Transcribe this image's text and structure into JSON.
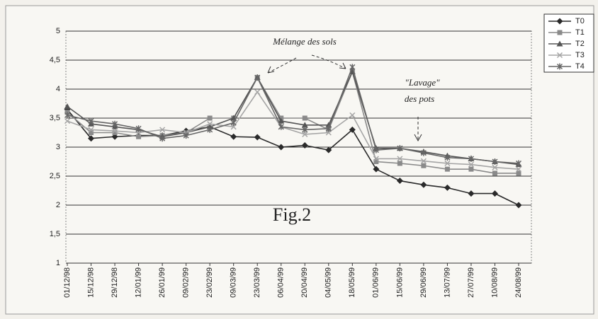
{
  "chart_data": {
    "type": "line",
    "categories": [
      "01/12/98",
      "15/12/98",
      "29/12/98",
      "12/01/99",
      "26/01/99",
      "09/02/99",
      "23/02/99",
      "09/03/99",
      "23/03/99",
      "06/04/99",
      "20/04/99",
      "04/05/99",
      "18/05/99",
      "01/06/99",
      "15/06/99",
      "29/06/99",
      "13/07/99",
      "27/07/99",
      "10/08/99",
      "24/08/99"
    ],
    "series": [
      {
        "name": "T0",
        "color": "#2a2a2a",
        "marker": "diamond",
        "values": [
          3.65,
          3.15,
          3.18,
          3.2,
          3.2,
          3.28,
          3.35,
          3.18,
          3.17,
          3.0,
          3.03,
          2.95,
          3.3,
          2.62,
          2.42,
          2.35,
          2.3,
          2.2,
          2.2,
          2.0
        ]
      },
      {
        "name": "T1",
        "color": "#8a8a8a",
        "marker": "square",
        "values": [
          3.6,
          3.25,
          3.25,
          3.18,
          3.2,
          3.25,
          3.5,
          3.5,
          4.2,
          3.5,
          3.5,
          3.3,
          4.3,
          2.75,
          2.72,
          2.68,
          2.62,
          2.62,
          2.55,
          2.55
        ]
      },
      {
        "name": "T2",
        "color": "#555555",
        "marker": "triangle",
        "values": [
          3.7,
          3.4,
          3.35,
          3.3,
          3.18,
          3.25,
          3.35,
          3.5,
          4.2,
          3.45,
          3.38,
          3.38,
          4.3,
          2.98,
          2.98,
          2.92,
          2.85,
          2.8,
          2.75,
          2.7
        ]
      },
      {
        "name": "T3",
        "color": "#a5a5a5",
        "marker": "cross",
        "values": [
          3.45,
          3.3,
          3.28,
          3.25,
          3.3,
          3.25,
          3.4,
          3.35,
          3.95,
          3.35,
          3.22,
          3.25,
          3.55,
          2.8,
          2.8,
          2.76,
          2.72,
          2.7,
          2.65,
          2.62
        ]
      },
      {
        "name": "T4",
        "color": "#666666",
        "marker": "star",
        "values": [
          3.55,
          3.45,
          3.4,
          3.32,
          3.15,
          3.2,
          3.3,
          3.42,
          4.2,
          3.35,
          3.3,
          3.32,
          4.38,
          2.95,
          2.98,
          2.9,
          2.82,
          2.8,
          2.75,
          2.72
        ]
      }
    ],
    "ylim": [
      1,
      5
    ],
    "yticks": [
      1,
      {
        "value": 1.5,
        "label": "1,5"
      },
      2,
      {
        "value": 2.5,
        "label": "2,5"
      },
      3,
      {
        "value": 3.5,
        "label": "3,5"
      },
      4,
      {
        "value": 4.5,
        "label": "4,5"
      },
      5
    ],
    "grid": true,
    "legend": "upper right",
    "annotations": [
      "Mélange des sols",
      "\"Lavage\"",
      "des pots",
      "Fig.2"
    ]
  }
}
